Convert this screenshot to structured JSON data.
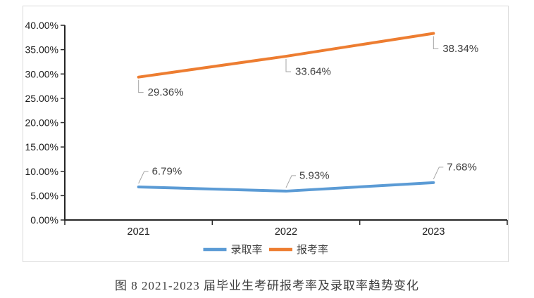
{
  "figure": {
    "caption": "图 8  2021-2023 届毕业生考研报考率及录取率趋势变化"
  },
  "chart_data": {
    "type": "line",
    "title": "",
    "xlabel": "",
    "ylabel": "",
    "categories": [
      "2021",
      "2022",
      "2023"
    ],
    "series": [
      {
        "key": "admission-rate",
        "name": "录取率",
        "color": "#5B9BD5",
        "values": [
          6.79,
          5.93,
          7.68
        ],
        "data_labels": [
          "6.79%",
          "5.93%",
          "7.68%"
        ],
        "label_side": "above"
      },
      {
        "key": "application-rate",
        "name": "报考率",
        "color": "#ED7D31",
        "values": [
          29.36,
          33.64,
          38.34
        ],
        "data_labels": [
          "29.36%",
          "33.64%",
          "38.34%"
        ],
        "label_side": "below"
      }
    ],
    "ylim": [
      0,
      40
    ],
    "y_tick_step": 5,
    "y_tick_labels": [
      "0.00%",
      "5.00%",
      "10.00%",
      "15.00%",
      "20.00%",
      "25.00%",
      "30.00%",
      "35.00%",
      "40.00%"
    ],
    "grid": false,
    "legend_position": "bottom",
    "colors": {
      "axis": "#262626",
      "tick_text": "#1a1a1a",
      "data_label_text": "#404040",
      "leader_line": "#a6a6a6",
      "chart_border": "#d9d9d9"
    }
  }
}
